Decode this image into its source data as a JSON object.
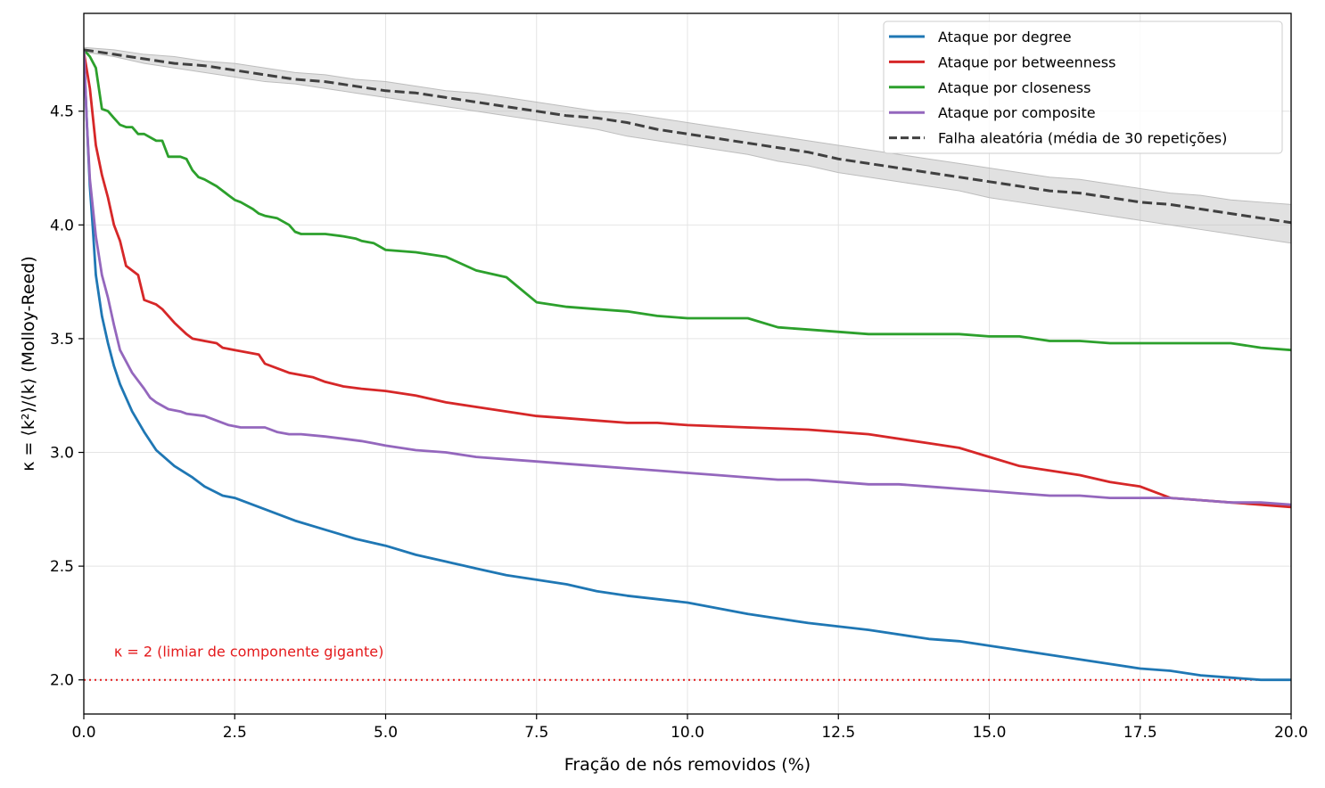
{
  "chart_data": {
    "type": "line",
    "title": "",
    "xlabel": "Fração de nós removidos (%)",
    "ylabel": "κ = ⟨k²⟩/⟨k⟩ (Molloy-Reed)",
    "xlim": [
      0,
      20
    ],
    "ylim": [
      1.85,
      4.93
    ],
    "x_ticks": [
      "0.0",
      "2.5",
      "5.0",
      "7.5",
      "10.0",
      "12.5",
      "15.0",
      "17.5",
      "20.0"
    ],
    "y_ticks": [
      "2.0",
      "2.5",
      "3.0",
      "3.5",
      "4.0",
      "4.5"
    ],
    "grid": true,
    "legend_position": "top-right",
    "series": [
      {
        "name": "Ataque por degree",
        "color": "#1f77b4",
        "style": "solid",
        "x": [
          0,
          0.05,
          0.1,
          0.15,
          0.2,
          0.3,
          0.4,
          0.5,
          0.6,
          0.7,
          0.8,
          1.0,
          1.2,
          1.5,
          1.8,
          2.0,
          2.3,
          2.5,
          3.0,
          3.5,
          4.0,
          4.5,
          5.0,
          5.5,
          6.0,
          6.5,
          7.0,
          7.5,
          8.0,
          8.5,
          9.0,
          10.0,
          11.0,
          12.0,
          13.0,
          14.0,
          14.5,
          15.0,
          16.0,
          17.0,
          17.5,
          18.0,
          18.5,
          19.0,
          19.5,
          20.0
        ],
        "y": [
          4.77,
          4.45,
          4.17,
          3.98,
          3.78,
          3.6,
          3.48,
          3.38,
          3.3,
          3.24,
          3.18,
          3.09,
          3.01,
          2.94,
          2.89,
          2.85,
          2.81,
          2.8,
          2.75,
          2.7,
          2.66,
          2.62,
          2.59,
          2.55,
          2.52,
          2.49,
          2.46,
          2.44,
          2.42,
          2.39,
          2.37,
          2.34,
          2.29,
          2.25,
          2.22,
          2.18,
          2.17,
          2.15,
          2.11,
          2.07,
          2.05,
          2.04,
          2.02,
          2.01,
          2.0,
          2.0
        ]
      },
      {
        "name": "Ataque por betweenness",
        "color": "#d62728",
        "style": "solid",
        "x": [
          0,
          0.1,
          0.2,
          0.3,
          0.4,
          0.5,
          0.6,
          0.7,
          0.9,
          1.0,
          1.2,
          1.3,
          1.5,
          1.7,
          1.8,
          2.0,
          2.2,
          2.3,
          2.5,
          2.7,
          2.9,
          3.0,
          3.2,
          3.4,
          3.6,
          3.8,
          4.0,
          4.3,
          4.6,
          5.0,
          5.5,
          6.0,
          6.5,
          7.0,
          7.5,
          8.0,
          8.5,
          9.0,
          9.5,
          10.0,
          11.0,
          12.0,
          13.0,
          14.0,
          14.5,
          15.0,
          15.5,
          16.0,
          16.5,
          17.0,
          17.5,
          18.0,
          18.5,
          19.0,
          19.5,
          20.0
        ],
        "y": [
          4.76,
          4.6,
          4.35,
          4.22,
          4.12,
          4.0,
          3.93,
          3.82,
          3.78,
          3.67,
          3.65,
          3.63,
          3.57,
          3.52,
          3.5,
          3.49,
          3.48,
          3.46,
          3.45,
          3.44,
          3.43,
          3.39,
          3.37,
          3.35,
          3.34,
          3.33,
          3.31,
          3.29,
          3.28,
          3.27,
          3.25,
          3.22,
          3.2,
          3.18,
          3.16,
          3.15,
          3.14,
          3.13,
          3.13,
          3.12,
          3.11,
          3.1,
          3.08,
          3.04,
          3.02,
          2.98,
          2.94,
          2.92,
          2.9,
          2.87,
          2.85,
          2.8,
          2.79,
          2.78,
          2.77,
          2.76
        ]
      },
      {
        "name": "Ataque por closeness",
        "color": "#2ca02c",
        "style": "solid",
        "x": [
          0,
          0.1,
          0.2,
          0.3,
          0.4,
          0.5,
          0.6,
          0.7,
          0.8,
          0.9,
          1.0,
          1.2,
          1.3,
          1.4,
          1.6,
          1.7,
          1.8,
          1.9,
          2.0,
          2.2,
          2.4,
          2.5,
          2.6,
          2.8,
          2.9,
          3.0,
          3.2,
          3.4,
          3.5,
          3.6,
          3.8,
          4.0,
          4.3,
          4.5,
          4.6,
          4.8,
          5.0,
          5.5,
          6.0,
          6.5,
          7.0,
          7.5,
          8.0,
          8.5,
          9.0,
          9.5,
          10.0,
          10.5,
          11.0,
          11.5,
          12.0,
          13.0,
          14.0,
          14.5,
          15.0,
          15.5,
          16.0,
          16.5,
          17.0,
          17.5,
          18.0,
          18.5,
          19.0,
          19.5,
          20.0
        ],
        "y": [
          4.77,
          4.74,
          4.69,
          4.51,
          4.5,
          4.47,
          4.44,
          4.43,
          4.43,
          4.4,
          4.4,
          4.37,
          4.37,
          4.3,
          4.3,
          4.29,
          4.24,
          4.21,
          4.2,
          4.17,
          4.13,
          4.11,
          4.1,
          4.07,
          4.05,
          4.04,
          4.03,
          4.0,
          3.97,
          3.96,
          3.96,
          3.96,
          3.95,
          3.94,
          3.93,
          3.92,
          3.89,
          3.88,
          3.86,
          3.8,
          3.77,
          3.66,
          3.64,
          3.63,
          3.62,
          3.6,
          3.59,
          3.59,
          3.59,
          3.55,
          3.54,
          3.52,
          3.52,
          3.52,
          3.51,
          3.51,
          3.49,
          3.49,
          3.48,
          3.48,
          3.48,
          3.48,
          3.48,
          3.46,
          3.45
        ]
      },
      {
        "name": "Ataque por composite",
        "color": "#9467bd",
        "style": "solid",
        "x": [
          0,
          0.05,
          0.1,
          0.2,
          0.3,
          0.4,
          0.5,
          0.6,
          0.8,
          1.0,
          1.1,
          1.2,
          1.4,
          1.6,
          1.7,
          2.0,
          2.2,
          2.4,
          2.6,
          3.0,
          3.2,
          3.4,
          3.6,
          4.0,
          4.3,
          4.6,
          4.8,
          5.0,
          5.5,
          6.0,
          6.5,
          7.0,
          7.5,
          8.0,
          8.5,
          9.0,
          9.5,
          10.0,
          10.5,
          11.0,
          11.5,
          12.0,
          12.5,
          13.0,
          13.5,
          14.0,
          14.5,
          15.0,
          15.5,
          16.0,
          16.5,
          17.0,
          17.5,
          18.0,
          18.5,
          19.0,
          19.5,
          20.0
        ],
        "y": [
          4.77,
          4.45,
          4.2,
          3.95,
          3.78,
          3.68,
          3.56,
          3.45,
          3.35,
          3.28,
          3.24,
          3.22,
          3.19,
          3.18,
          3.17,
          3.16,
          3.14,
          3.12,
          3.11,
          3.11,
          3.09,
          3.08,
          3.08,
          3.07,
          3.06,
          3.05,
          3.04,
          3.03,
          3.01,
          3.0,
          2.98,
          2.97,
          2.96,
          2.95,
          2.94,
          2.93,
          2.92,
          2.91,
          2.9,
          2.89,
          2.88,
          2.88,
          2.87,
          2.86,
          2.86,
          2.85,
          2.84,
          2.83,
          2.82,
          2.81,
          2.81,
          2.8,
          2.8,
          2.8,
          2.79,
          2.78,
          2.78,
          2.77
        ]
      },
      {
        "name": "Falha aleatória (média de 30 repetições)",
        "color": "#404040",
        "style": "dashed",
        "band_color": "#bdbdbd",
        "x": [
          0,
          0.5,
          1.0,
          1.5,
          2.0,
          2.5,
          3.0,
          3.5,
          4.0,
          4.5,
          5.0,
          5.5,
          6.0,
          6.5,
          7.0,
          7.5,
          8.0,
          8.5,
          9.0,
          9.5,
          10.0,
          10.5,
          11.0,
          11.5,
          12.0,
          12.5,
          13.0,
          13.5,
          14.0,
          14.5,
          15.0,
          15.5,
          16.0,
          16.5,
          17.0,
          17.5,
          18.0,
          18.5,
          19.0,
          19.5,
          20.0
        ],
        "y": [
          4.77,
          4.75,
          4.73,
          4.71,
          4.7,
          4.68,
          4.66,
          4.64,
          4.63,
          4.61,
          4.59,
          4.58,
          4.56,
          4.54,
          4.52,
          4.5,
          4.48,
          4.47,
          4.45,
          4.42,
          4.4,
          4.38,
          4.36,
          4.34,
          4.32,
          4.29,
          4.27,
          4.25,
          4.23,
          4.21,
          4.19,
          4.17,
          4.15,
          4.14,
          4.12,
          4.1,
          4.09,
          4.07,
          4.05,
          4.03,
          4.01
        ],
        "y_low": [
          4.76,
          4.74,
          4.71,
          4.69,
          4.67,
          4.65,
          4.63,
          4.62,
          4.6,
          4.58,
          4.56,
          4.54,
          4.52,
          4.5,
          4.48,
          4.46,
          4.44,
          4.42,
          4.39,
          4.37,
          4.35,
          4.33,
          4.31,
          4.28,
          4.26,
          4.23,
          4.21,
          4.19,
          4.17,
          4.15,
          4.12,
          4.1,
          4.08,
          4.06,
          4.04,
          4.02,
          4.0,
          3.98,
          3.96,
          3.94,
          3.92
        ],
        "y_high": [
          4.78,
          4.77,
          4.75,
          4.74,
          4.72,
          4.71,
          4.69,
          4.67,
          4.66,
          4.64,
          4.63,
          4.61,
          4.59,
          4.58,
          4.56,
          4.54,
          4.52,
          4.5,
          4.49,
          4.47,
          4.45,
          4.43,
          4.41,
          4.39,
          4.37,
          4.35,
          4.33,
          4.31,
          4.29,
          4.27,
          4.25,
          4.23,
          4.21,
          4.2,
          4.18,
          4.16,
          4.14,
          4.13,
          4.11,
          4.1,
          4.09
        ]
      }
    ],
    "reference_line": {
      "y": 2.0,
      "color": "#e41a1c",
      "style": "dotted",
      "label": "κ = 2 (limiar de componente gigante)"
    }
  }
}
